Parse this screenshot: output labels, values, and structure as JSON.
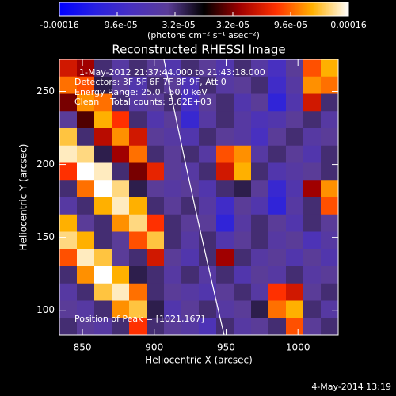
{
  "chart_data": {
    "type": "heatmap",
    "title": "Reconstructed RHESSI Image",
    "xlabel": "Heliocentric X (arcsec)",
    "ylabel": "Heliocentric Y (arcsec)",
    "xlim": [
      834,
      1028
    ],
    "ylim": [
      83,
      272
    ],
    "xticks": [
      850,
      900,
      950,
      1000
    ],
    "yticks": [
      100,
      150,
      200,
      250
    ],
    "clim": [
      -0.00016,
      0.00016
    ],
    "cticks": [
      -0.00016,
      {
        "value": -9.6e-05,
        "label": "−9.6e-05"
      },
      {
        "value": -3.2e-05,
        "label": "−3.2e-05"
      },
      {
        "value": 3.2e-05,
        "label": "3.2e-05"
      },
      {
        "value": 9.6e-05,
        "label": "9.6e-05"
      },
      0.00016
    ],
    "clabel": "(photons cm⁻² s⁻¹ asec⁻²)",
    "colormap": [
      "#0000ff",
      "#2820e0",
      "#4830c0",
      "#5a3c98",
      "#000000",
      "#a00000",
      "#ff3000",
      "#ffb000",
      "#ffffff"
    ],
    "annotations": [
      "1-May-2012 21:37:44.000 to 21:43:18.000",
      "Detectors: 3F 5F 6F 7F 8F 9F, Att 0",
      "Energy Range: 25.0 - 50.0 keV",
      "Clean    Total counts: 5.62E+03"
    ],
    "peak_label": "Position of Peak = [1021,167]",
    "timestamp": "4-May-2014 13:19",
    "z": [
      [
        6e-05,
        4e-05,
        -3e-05,
        -5e-05,
        -3e-05,
        -4e-05,
        -6e-05,
        -3e-05,
        -4e-05,
        -6e-05,
        -3e-05,
        -5e-05,
        -8e-05,
        -4e-05,
        9e-05,
        0.00012
      ],
      [
        0.0001,
        9e-05,
        -2e-05,
        -4e-05,
        -6e-05,
        -3e-05,
        -4e-05,
        -7e-05,
        -3e-05,
        -5e-05,
        -4e-05,
        -3e-05,
        -9e-05,
        -5e-05,
        0.00011,
        0.0001
      ],
      [
        3e-05,
        0.00011,
        0.0001,
        -3e-05,
        -5e-05,
        -4e-05,
        -3e-05,
        -8e-05,
        -4e-05,
        -3e-05,
        -6e-05,
        -4e-05,
        -0.00011,
        -6e-05,
        6e-05,
        -3e-05
      ],
      [
        -4e-05,
        2e-05,
        0.00012,
        8e-05,
        -3e-05,
        -6e-05,
        -4e-05,
        -0.0001,
        -5e-05,
        -3e-05,
        -5e-05,
        -7e-05,
        -6e-05,
        -4e-05,
        -3e-05,
        -5e-05
      ],
      [
        0.00013,
        -3e-05,
        5e-05,
        0.00011,
        6e-05,
        -4e-05,
        -5e-05,
        -6e-05,
        -3e-05,
        -4e-05,
        -5e-05,
        -8e-05,
        -4e-05,
        -3e-05,
        -5e-05,
        -4e-05
      ],
      [
        0.00015,
        0.00014,
        -2e-05,
        4e-05,
        0.0001,
        -3e-05,
        -4e-05,
        -3e-05,
        -5e-05,
        9e-05,
        0.00011,
        -5e-05,
        -3e-05,
        -4e-05,
        -6e-05,
        -3e-05
      ],
      [
        8e-05,
        0.00016,
        0.00015,
        -3e-05,
        3e-05,
        7e-05,
        -4e-05,
        -5e-05,
        -3e-05,
        6e-05,
        0.00012,
        -3e-05,
        -6e-05,
        -5e-05,
        -4e-05,
        -3e-05
      ],
      [
        -3e-05,
        0.0001,
        0.00016,
        0.00014,
        -2e-05,
        -4e-05,
        -5e-05,
        -4e-05,
        -6e-05,
        -3e-05,
        -2e-05,
        -4e-05,
        -0.0001,
        -6e-05,
        4e-05,
        0.00011
      ],
      [
        -5e-05,
        -3e-05,
        0.00012,
        0.00015,
        0.00012,
        -3e-05,
        -4e-05,
        -3e-05,
        -5e-05,
        -9e-05,
        -4e-05,
        -6e-05,
        -0.00011,
        -5e-05,
        -3e-05,
        9e-05
      ],
      [
        0.00012,
        -4e-05,
        -3e-05,
        0.00011,
        0.00014,
        8e-05,
        -3e-05,
        -4e-05,
        -4e-05,
        -0.00011,
        -5e-05,
        -3e-05,
        -4e-05,
        -6e-05,
        -3e-05,
        -4e-05
      ],
      [
        0.00014,
        0.00012,
        -3e-05,
        -4e-05,
        9e-05,
        0.00013,
        -3e-05,
        -5e-05,
        -3e-05,
        -6e-05,
        -4e-05,
        -3e-05,
        -5e-05,
        -4e-05,
        -7e-05,
        -5e-05
      ],
      [
        9e-05,
        0.00015,
        0.00013,
        -4e-05,
        -3e-05,
        6e-05,
        -4e-05,
        -6e-05,
        -3e-05,
        4e-05,
        -3e-05,
        -5e-05,
        -4e-05,
        -6e-05,
        -4e-05,
        -6e-05
      ],
      [
        -3e-05,
        0.00011,
        0.00016,
        0.00012,
        -2e-05,
        -3e-05,
        -5e-05,
        -3e-05,
        -5e-05,
        -3e-05,
        -6e-05,
        -4e-05,
        -5e-05,
        -3e-05,
        -5e-05,
        -4e-05
      ],
      [
        -5e-05,
        -3e-05,
        0.00013,
        0.00015,
        0.0001,
        -3e-05,
        -4e-05,
        -5e-05,
        -6e-05,
        -4e-05,
        -3e-05,
        -5e-05,
        8e-05,
        6e-05,
        -4e-05,
        -3e-05
      ],
      [
        -4e-05,
        -5e-05,
        -3e-05,
        0.00011,
        0.00013,
        -2e-05,
        -6e-05,
        -4e-05,
        -3e-05,
        -5e-05,
        -4e-05,
        -2e-05,
        0.0001,
        0.00012,
        -3e-05,
        -5e-05
      ],
      [
        -3e-05,
        -4e-05,
        -5e-05,
        -3e-05,
        8e-05,
        -3e-05,
        -4e-05,
        -5e-05,
        -7e-05,
        -3e-05,
        -5e-05,
        -4e-05,
        -3e-05,
        9e-05,
        -4e-05,
        -3e-05
      ]
    ]
  }
}
